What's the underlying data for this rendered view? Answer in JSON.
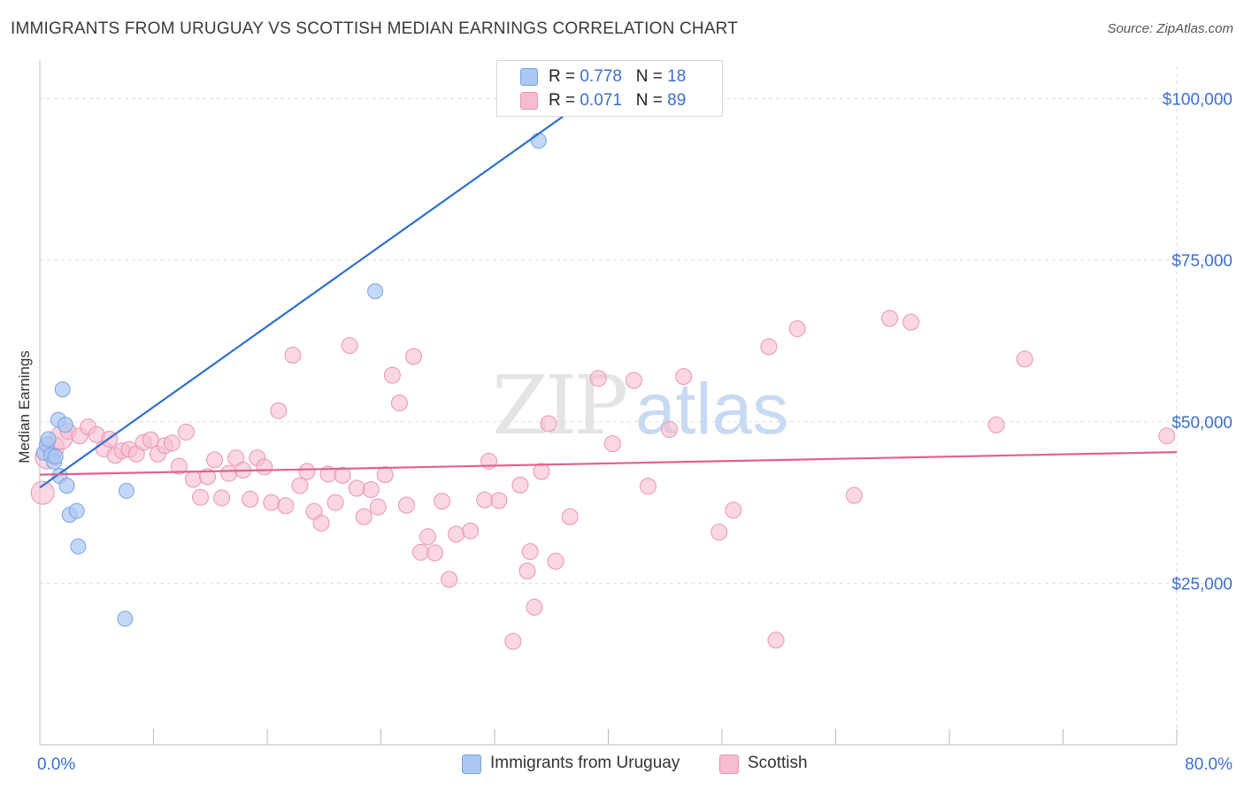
{
  "title": "IMMIGRANTS FROM URUGUAY VS SCOTTISH MEDIAN EARNINGS CORRELATION CHART",
  "source": "Source: ZipAtlas.com",
  "watermark": {
    "zip": "ZIP",
    "atlas": "atlas"
  },
  "legend_top": [
    {
      "r_label": "R = ",
      "r_value": "0.778",
      "n_label": "N = ",
      "n_value": "18",
      "color": "#a9c8f3"
    },
    {
      "r_label": "R = ",
      "r_value": "0.071",
      "n_label": "N = ",
      "n_value": "89",
      "color": "#f7bcd0"
    }
  ],
  "legend_bottom": [
    "Immigrants from Uruguay",
    "Scottish"
  ],
  "colors": {
    "blue_fill": "#a9c8f3",
    "blue_stroke": "#7aa3de",
    "blue_line": "#2e6fd0",
    "pink_fill": "#f7bcd0",
    "pink_stroke": "#ea93b3",
    "pink_line": "#e0628f",
    "tick_label": "#3b6fd0",
    "grid": "#dddddd"
  },
  "chart_data": {
    "type": "scatter",
    "title": "IMMIGRANTS FROM URUGUAY VS SCOTTISH MEDIAN EARNINGS CORRELATION CHART",
    "xlabel": "",
    "ylabel": "Median Earnings",
    "xlim": [
      0,
      80
    ],
    "ylim": [
      0,
      105000
    ],
    "x_tick_labels": [
      "0.0%",
      "80.0%"
    ],
    "y_ticks": [
      25000,
      50000,
      75000,
      100000
    ],
    "y_tick_labels": [
      "$25,000",
      "$50,000",
      "$75,000",
      "$100,000"
    ],
    "grid": true,
    "legend_position": "top-center",
    "series": [
      {
        "name": "Immigrants from Uruguay",
        "r": 0.778,
        "n": 18,
        "trend": {
          "x": [
            0,
            40.5
          ],
          "y": [
            39800,
            103000
          ]
        },
        "points": [
          {
            "x": 0.3,
            "y": 45200
          },
          {
            "x": 0.5,
            "y": 46500
          },
          {
            "x": 0.6,
            "y": 47300
          },
          {
            "x": 0.8,
            "y": 44800
          },
          {
            "x": 1.0,
            "y": 43800
          },
          {
            "x": 1.1,
            "y": 44600
          },
          {
            "x": 1.3,
            "y": 50300
          },
          {
            "x": 1.4,
            "y": 41600
          },
          {
            "x": 1.6,
            "y": 55000
          },
          {
            "x": 1.8,
            "y": 49500
          },
          {
            "x": 1.9,
            "y": 40100
          },
          {
            "x": 2.1,
            "y": 35600
          },
          {
            "x": 2.6,
            "y": 36200
          },
          {
            "x": 2.7,
            "y": 30700
          },
          {
            "x": 6.1,
            "y": 39300
          },
          {
            "x": 6.0,
            "y": 19500
          },
          {
            "x": 23.6,
            "y": 70200
          },
          {
            "x": 35.1,
            "y": 93500
          }
        ]
      },
      {
        "name": "Scottish",
        "r": 0.071,
        "n": 89,
        "trend": {
          "x": [
            0,
            80
          ],
          "y": [
            41800,
            45300
          ]
        },
        "points": [
          {
            "x": 0.2,
            "y": 39000
          },
          {
            "x": 0.5,
            "y": 44500
          },
          {
            "x": 0.9,
            "y": 46000
          },
          {
            "x": 1.5,
            "y": 47500
          },
          {
            "x": 2.0,
            "y": 48500
          },
          {
            "x": 2.8,
            "y": 47800
          },
          {
            "x": 3.4,
            "y": 49200
          },
          {
            "x": 4.0,
            "y": 48000
          },
          {
            "x": 4.5,
            "y": 45800
          },
          {
            "x": 4.9,
            "y": 47300
          },
          {
            "x": 5.3,
            "y": 44800
          },
          {
            "x": 5.8,
            "y": 45500
          },
          {
            "x": 6.3,
            "y": 45700
          },
          {
            "x": 6.8,
            "y": 45000
          },
          {
            "x": 7.3,
            "y": 46800
          },
          {
            "x": 7.8,
            "y": 47200
          },
          {
            "x": 8.3,
            "y": 45000
          },
          {
            "x": 8.8,
            "y": 46300
          },
          {
            "x": 9.3,
            "y": 46700
          },
          {
            "x": 9.8,
            "y": 43100
          },
          {
            "x": 10.3,
            "y": 48400
          },
          {
            "x": 10.8,
            "y": 41100
          },
          {
            "x": 11.3,
            "y": 38300
          },
          {
            "x": 11.8,
            "y": 41500
          },
          {
            "x": 12.3,
            "y": 44100
          },
          {
            "x": 12.8,
            "y": 38200
          },
          {
            "x": 13.3,
            "y": 42000
          },
          {
            "x": 13.8,
            "y": 44400
          },
          {
            "x": 14.3,
            "y": 42500
          },
          {
            "x": 14.8,
            "y": 38000
          },
          {
            "x": 15.3,
            "y": 44400
          },
          {
            "x": 15.8,
            "y": 43000
          },
          {
            "x": 16.3,
            "y": 37500
          },
          {
            "x": 16.8,
            "y": 51700
          },
          {
            "x": 17.3,
            "y": 37000
          },
          {
            "x": 17.8,
            "y": 60300
          },
          {
            "x": 18.3,
            "y": 40100
          },
          {
            "x": 18.8,
            "y": 42300
          },
          {
            "x": 19.3,
            "y": 36100
          },
          {
            "x": 19.8,
            "y": 34300
          },
          {
            "x": 20.3,
            "y": 41900
          },
          {
            "x": 20.8,
            "y": 37500
          },
          {
            "x": 21.3,
            "y": 41700
          },
          {
            "x": 21.8,
            "y": 61800
          },
          {
            "x": 22.3,
            "y": 39700
          },
          {
            "x": 22.8,
            "y": 35300
          },
          {
            "x": 23.3,
            "y": 39500
          },
          {
            "x": 23.8,
            "y": 36800
          },
          {
            "x": 24.3,
            "y": 41800
          },
          {
            "x": 24.8,
            "y": 57200
          },
          {
            "x": 25.3,
            "y": 52900
          },
          {
            "x": 25.8,
            "y": 37100
          },
          {
            "x": 26.3,
            "y": 60100
          },
          {
            "x": 26.8,
            "y": 29800
          },
          {
            "x": 27.3,
            "y": 32200
          },
          {
            "x": 27.8,
            "y": 29700
          },
          {
            "x": 28.3,
            "y": 37700
          },
          {
            "x": 28.8,
            "y": 25600
          },
          {
            "x": 29.3,
            "y": 32600
          },
          {
            "x": 30.3,
            "y": 33100
          },
          {
            "x": 31.3,
            "y": 37900
          },
          {
            "x": 31.6,
            "y": 43900
          },
          {
            "x": 32.3,
            "y": 37800
          },
          {
            "x": 33.3,
            "y": 16000
          },
          {
            "x": 33.8,
            "y": 40200
          },
          {
            "x": 34.3,
            "y": 26900
          },
          {
            "x": 34.5,
            "y": 29900
          },
          {
            "x": 34.8,
            "y": 21300
          },
          {
            "x": 35.3,
            "y": 42300
          },
          {
            "x": 35.8,
            "y": 49700
          },
          {
            "x": 36.3,
            "y": 28400
          },
          {
            "x": 37.3,
            "y": 35300
          },
          {
            "x": 39.3,
            "y": 56700
          },
          {
            "x": 40.3,
            "y": 46600
          },
          {
            "x": 41.8,
            "y": 56400
          },
          {
            "x": 42.8,
            "y": 40000
          },
          {
            "x": 44.3,
            "y": 48800
          },
          {
            "x": 45.3,
            "y": 57000
          },
          {
            "x": 47.8,
            "y": 32900
          },
          {
            "x": 48.8,
            "y": 36300
          },
          {
            "x": 51.3,
            "y": 61600
          },
          {
            "x": 51.8,
            "y": 16200
          },
          {
            "x": 53.3,
            "y": 64400
          },
          {
            "x": 57.3,
            "y": 38600
          },
          {
            "x": 59.8,
            "y": 66000
          },
          {
            "x": 61.3,
            "y": 65400
          },
          {
            "x": 67.3,
            "y": 49500
          },
          {
            "x": 69.3,
            "y": 59700
          },
          {
            "x": 79.3,
            "y": 47800
          }
        ]
      }
    ]
  }
}
